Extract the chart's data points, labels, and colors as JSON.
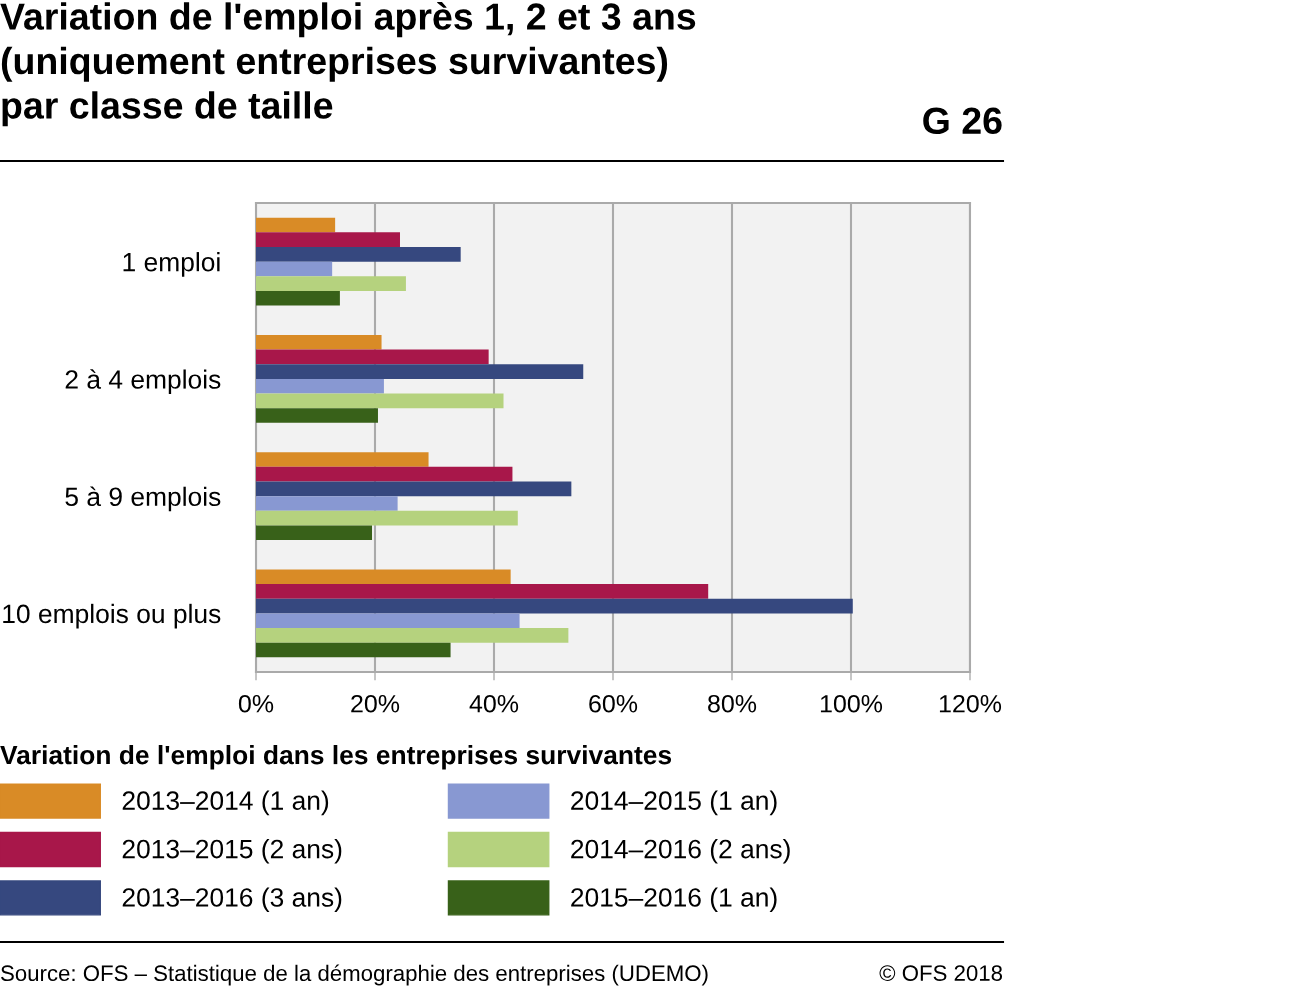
{
  "chart_data": {
    "type": "bar",
    "orientation": "horizontal",
    "title": "Variation de l'emploi après 1, 2 et 3 ans\n(uniquement entreprises survivantes)\npar classe de taille",
    "categories": [
      "1 emploi",
      "2 à 4 emplois",
      "5 à 9 emplois",
      "10 emplois ou plus"
    ],
    "series": [
      {
        "name": "2013–2014 (1 an)",
        "color": "#d98b26",
        "values": [
          13.3,
          21.1,
          29.0,
          42.8
        ]
      },
      {
        "name": "2013–2015 (2 ans)",
        "color": "#a8174a",
        "values": [
          24.2,
          39.1,
          43.1,
          76.0
        ]
      },
      {
        "name": "2013–2016 (3 ans)",
        "color": "#36487f",
        "values": [
          34.4,
          55.0,
          53.0,
          100.3
        ]
      },
      {
        "name": "2014–2015 (1 an)",
        "color": "#8898d2",
        "values": [
          12.8,
          21.5,
          23.8,
          44.3
        ]
      },
      {
        "name": "2014–2016 (2 ans)",
        "color": "#b5d27e",
        "values": [
          25.2,
          41.6,
          44.0,
          52.5
        ]
      },
      {
        "name": "2015–2016 (1 an)",
        "color": "#386119",
        "values": [
          14.1,
          20.5,
          19.5,
          32.7
        ]
      }
    ],
    "xlim": [
      0,
      120
    ],
    "xticks": [
      {
        "value": 0,
        "label": "0%"
      },
      {
        "value": 20,
        "label": "20%"
      },
      {
        "value": 40,
        "label": "40%"
      },
      {
        "value": 60,
        "label": "60%"
      },
      {
        "value": 80,
        "label": "80%"
      },
      {
        "value": 100,
        "label": "100%"
      },
      {
        "value": 120,
        "label": "120%"
      }
    ],
    "grid": "x",
    "legend": "bottom",
    "legend_title": "Variation de l'emploi dans les entreprises survivantes",
    "annotations": [
      "G 26",
      "Source: OFS – Statistique de la démographie des entreprises (UDEMO)",
      "© OFS 2018"
    ]
  }
}
